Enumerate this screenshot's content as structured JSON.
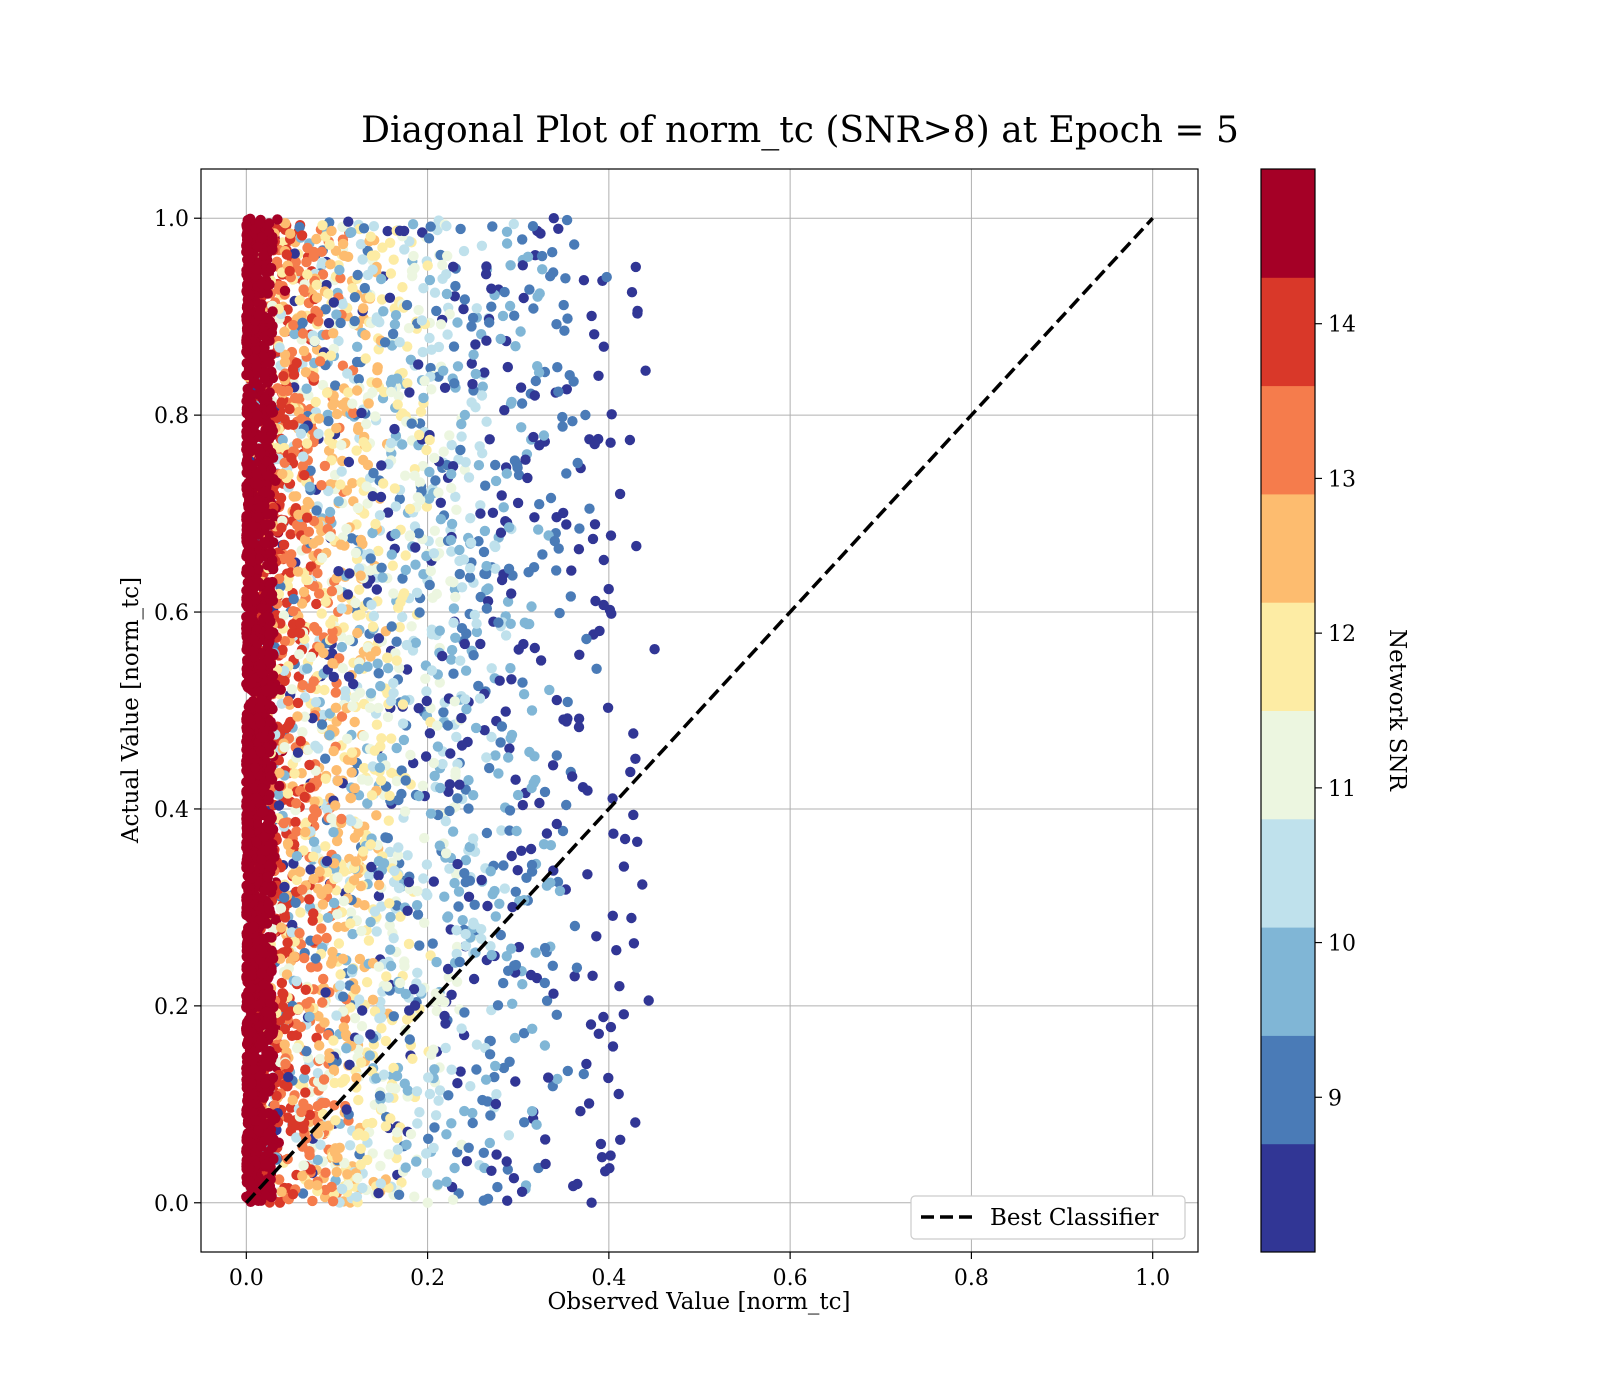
{
  "chart_data": {
    "type": "scatter",
    "title": "Diagonal Plot of norm_tc (SNR>8) at Epoch = 5",
    "xlabel": "Observed Value [norm_tc]",
    "ylabel": "Actual Value [norm_tc]",
    "xlim": [
      -0.05,
      1.05
    ],
    "ylim": [
      -0.05,
      1.05
    ],
    "xticks": [
      0.0,
      0.2,
      0.4,
      0.6,
      0.8,
      1.0
    ],
    "yticks": [
      0.0,
      0.2,
      0.4,
      0.6,
      0.8,
      1.0
    ],
    "xtick_labels": [
      "0.0",
      "0.2",
      "0.4",
      "0.6",
      "0.8",
      "1.0"
    ],
    "ytick_labels": [
      "0.0",
      "0.2",
      "0.4",
      "0.6",
      "0.8",
      "1.0"
    ],
    "grid": true,
    "scatter_description": {
      "observed_range": [
        0.0,
        0.5
      ],
      "actual_range": [
        0.0,
        1.0
      ],
      "color_by": "Network SNR",
      "trend": "high-SNR points concentrate near observed 0.0; low-SNR points extend to observed ~0.4-0.5"
    },
    "reference_line": {
      "name": "Best Classifier",
      "x": [
        0.0,
        1.0
      ],
      "y": [
        0.0,
        1.0
      ],
      "style": "dashed",
      "color": "#000000"
    },
    "legend": {
      "position": "lower right",
      "entries": [
        "Best Classifier"
      ]
    },
    "colorbar": {
      "label": "Network SNR",
      "range": [
        8.0,
        15.0
      ],
      "ticks": [
        9,
        10,
        11,
        12,
        13,
        14
      ],
      "tick_labels": [
        "9",
        "10",
        "11",
        "12",
        "13",
        "14"
      ],
      "colormap": "RdYlBu_r",
      "levels": [
        {
          "from": 8.0,
          "to": 8.7,
          "color": "#313695"
        },
        {
          "from": 8.7,
          "to": 9.4,
          "color": "#4a7bb7"
        },
        {
          "from": 9.4,
          "to": 10.1,
          "color": "#80b6d6"
        },
        {
          "from": 10.1,
          "to": 10.8,
          "color": "#bfe1ec"
        },
        {
          "from": 10.8,
          "to": 11.5,
          "color": "#ecf6e0"
        },
        {
          "from": 11.5,
          "to": 12.2,
          "color": "#fdeca4"
        },
        {
          "from": 12.2,
          "to": 12.9,
          "color": "#fdbc6f"
        },
        {
          "from": 12.9,
          "to": 13.6,
          "color": "#f57c4c"
        },
        {
          "from": 13.6,
          "to": 14.3,
          "color": "#d93829"
        },
        {
          "from": 14.3,
          "to": 15.0,
          "color": "#a50026"
        }
      ]
    }
  }
}
